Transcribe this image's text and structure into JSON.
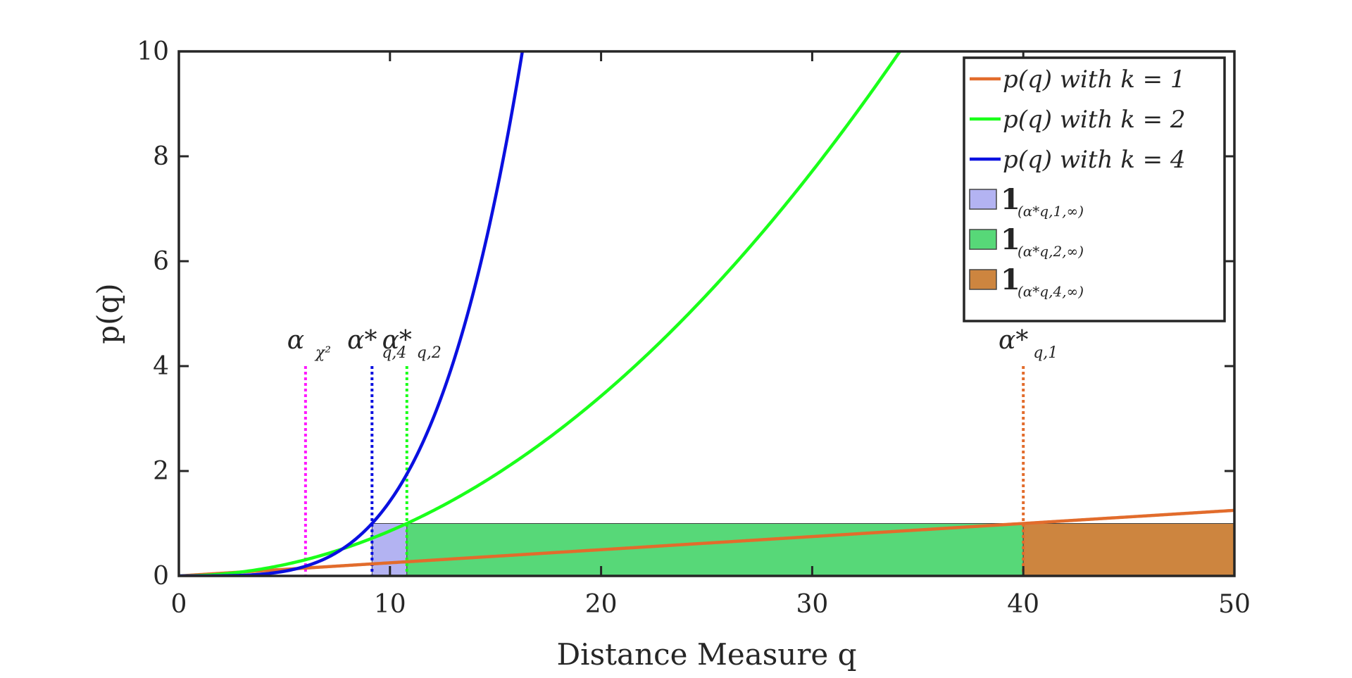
{
  "chart_data": {
    "type": "line",
    "title": "",
    "xlabel": "Distance Measure q",
    "ylabel": "p(q)",
    "xlim": [
      0,
      50
    ],
    "ylim": [
      0,
      10
    ],
    "x_ticks": [
      0,
      10,
      20,
      30,
      40,
      50
    ],
    "y_ticks": [
      0,
      2,
      4,
      6,
      8,
      10
    ],
    "grid": false,
    "legend_position": "top-right",
    "series": [
      {
        "name": "p(q) with k = 1",
        "k": 1,
        "color": "#e26c2c",
        "formula": "q/40"
      },
      {
        "name": "p(q) with k = 2",
        "k": 2,
        "color": "#1aff1a",
        "formula": "(q/10.8)^2"
      },
      {
        "name": "p(q) with k = 4",
        "k": 4,
        "color": "#0a10e0",
        "formula": "(q/9.15)^4"
      }
    ],
    "regions": [
      {
        "name": "1(α*q,1,∞)",
        "legend_sub": "q,1",
        "x_start": 9.15,
        "x_end": 10.8,
        "height": 1,
        "color": "#b3b3f2"
      },
      {
        "name": "1(α*q,2,∞)",
        "legend_sub": "q,2",
        "x_start": 10.8,
        "x_end": 40,
        "height": 1,
        "color": "#57d878"
      },
      {
        "name": "1(α*q,4,∞)",
        "legend_sub": "q,4",
        "x_start": 40,
        "x_end": 50,
        "height": 1,
        "color": "#cd853f"
      }
    ],
    "thresholds": [
      {
        "label": "α",
        "sub": "χ²",
        "x": 6,
        "color": "#ff1aff"
      },
      {
        "label": "α*",
        "sub": "q,4",
        "x": 9.15,
        "color": "#0a10e0"
      },
      {
        "label": "α*",
        "sub": "q,2",
        "x": 10.8,
        "color": "#1aff1a"
      },
      {
        "label": "α*",
        "sub": "q,1",
        "x": 40,
        "color": "#e26c2c"
      }
    ]
  }
}
